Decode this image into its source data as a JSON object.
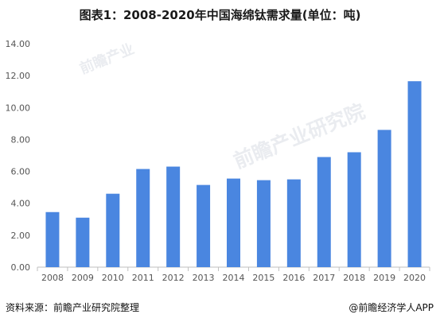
{
  "header": {
    "title": "图表1：2008-2020年中国海绵钛需求量(单位：吨)"
  },
  "footer": {
    "source": "资料来源：前瞻产业研究院整理",
    "credit": "@前瞻经济学人APP"
  },
  "watermark": {
    "small": "前瞻产业",
    "large": "前瞻产业研究院"
  },
  "colors": {
    "bar": "#4a86e0",
    "axis": "#bfbfbf",
    "tick": "#555555"
  },
  "chart_data": {
    "type": "bar",
    "title": "图表1：2008-2020年中国海绵钛需求量(单位：吨)",
    "categories": [
      "2008",
      "2009",
      "2010",
      "2011",
      "2012",
      "2013",
      "2014",
      "2015",
      "2016",
      "2017",
      "2018",
      "2019",
      "2020"
    ],
    "values": [
      3.45,
      3.1,
      4.6,
      6.15,
      6.3,
      5.15,
      5.55,
      5.45,
      5.5,
      6.9,
      7.2,
      8.6,
      11.65
    ],
    "yticks": [
      "0.00",
      "2.00",
      "4.00",
      "6.00",
      "8.00",
      "10.00",
      "12.00",
      "14.00"
    ],
    "ylim": [
      0,
      14
    ],
    "grid": false,
    "legend": "none"
  }
}
